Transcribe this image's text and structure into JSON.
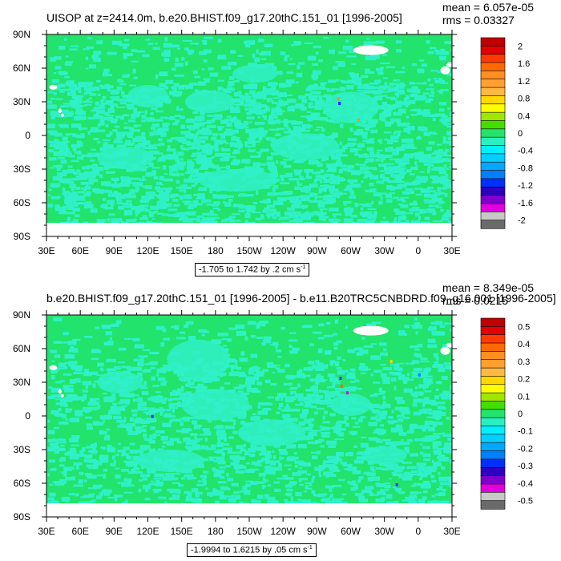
{
  "panels": [
    {
      "title": "UISOP at z=2414.0m, b.e20.BHIST.f09_g17.20thC.151_01 [1996-2005]",
      "mean_text": "mean = 6.057e-05",
      "rms_text": "rms = 0.03327",
      "range_text": "-1.705 to 1.742 by .2 cm s",
      "range_exp": "-1",
      "colorbar_labels": [
        "2",
        "1.6",
        "1.2",
        "0.8",
        "0.4",
        "0",
        "-0.4",
        "-0.8",
        "-1.2",
        "-1.6",
        "-2"
      ]
    },
    {
      "title": "b.e20.BHIST.f09_g17.20thC.151_01 [1996-2005] - b.e11.B20TRC5CNBDRD.f09_g16.001 [1996-2005]",
      "mean_text": "mean = 8.349e-05",
      "rms_text": "rms = 0.0215",
      "range_text": "-1.9994 to 1.6215 by .05 cm s",
      "range_exp": "-1",
      "colorbar_labels": [
        "0.5",
        "0.4",
        "0.3",
        "0.2",
        "0.1",
        "0",
        "-0.1",
        "-0.2",
        "-0.3",
        "-0.4",
        "-0.5"
      ]
    }
  ],
  "colors": {
    "ocean_fill": "#22e36b",
    "anomaly_fill": "#30f0c8",
    "land_fill": "#ffffff",
    "colorbar": [
      "#c00000",
      "#e30000",
      "#ff3a00",
      "#ff6a00",
      "#ff8f20",
      "#ffa030",
      "#ffb840",
      "#ffd800",
      "#ffff00",
      "#a0e600",
      "#44dd00",
      "#22e36b",
      "#2af0c0",
      "#00f0ff",
      "#00d0ff",
      "#00a8ff",
      "#0080ff",
      "#0030ff",
      "#3000c0",
      "#8000d0",
      "#e000e0",
      "#c8c8c8",
      "#6a6a6a"
    ]
  },
  "chart_data": [
    {
      "type": "heatmap",
      "title": "UISOP at z=2414.0m, b.e20.BHIST.f09_g17.20thC.151_01 [1996-2005]",
      "x_ticks": [
        "30E",
        "60E",
        "90E",
        "120E",
        "150E",
        "180",
        "150W",
        "120W",
        "90W",
        "60W",
        "30W",
        "0",
        "30E"
      ],
      "y_ticks": [
        "90N",
        "60N",
        "30N",
        "0",
        "30S",
        "60S",
        "90S"
      ],
      "xlim": [
        30,
        390
      ],
      "ylim": [
        -90,
        90
      ],
      "levels": [
        -2,
        -1.8,
        -1.6,
        -1.4,
        -1.2,
        -1.0,
        -0.8,
        -0.6,
        -0.4,
        -0.2,
        0,
        0.2,
        0.4,
        0.6,
        0.8,
        1.0,
        1.2,
        1.4,
        1.6,
        1.8,
        2
      ],
      "data_min": -1.705,
      "data_max": 1.742,
      "interval": 0.2,
      "units": "cm s-1",
      "mean": 6.057e-05,
      "rms": 0.03327
    },
    {
      "type": "heatmap",
      "title": "b.e20.BHIST.f09_g17.20thC.151_01 [1996-2005] - b.e11.B20TRC5CNBDRD.f09_g16.001 [1996-2005]",
      "x_ticks": [
        "30E",
        "60E",
        "90E",
        "120E",
        "150E",
        "180",
        "150W",
        "120W",
        "90W",
        "60W",
        "30W",
        "0",
        "30E"
      ],
      "y_ticks": [
        "90N",
        "60N",
        "30N",
        "0",
        "30S",
        "60S",
        "90S"
      ],
      "xlim": [
        30,
        390
      ],
      "ylim": [
        -90,
        90
      ],
      "levels": [
        -0.5,
        -0.45,
        -0.4,
        -0.35,
        -0.3,
        -0.25,
        -0.2,
        -0.15,
        -0.1,
        -0.05,
        0,
        0.05,
        0.1,
        0.15,
        0.2,
        0.25,
        0.3,
        0.35,
        0.4,
        0.45,
        0.5
      ],
      "data_min": -1.9994,
      "data_max": 1.6215,
      "interval": 0.05,
      "units": "cm s-1",
      "mean": 8.349e-05,
      "rms": 0.0215
    }
  ]
}
